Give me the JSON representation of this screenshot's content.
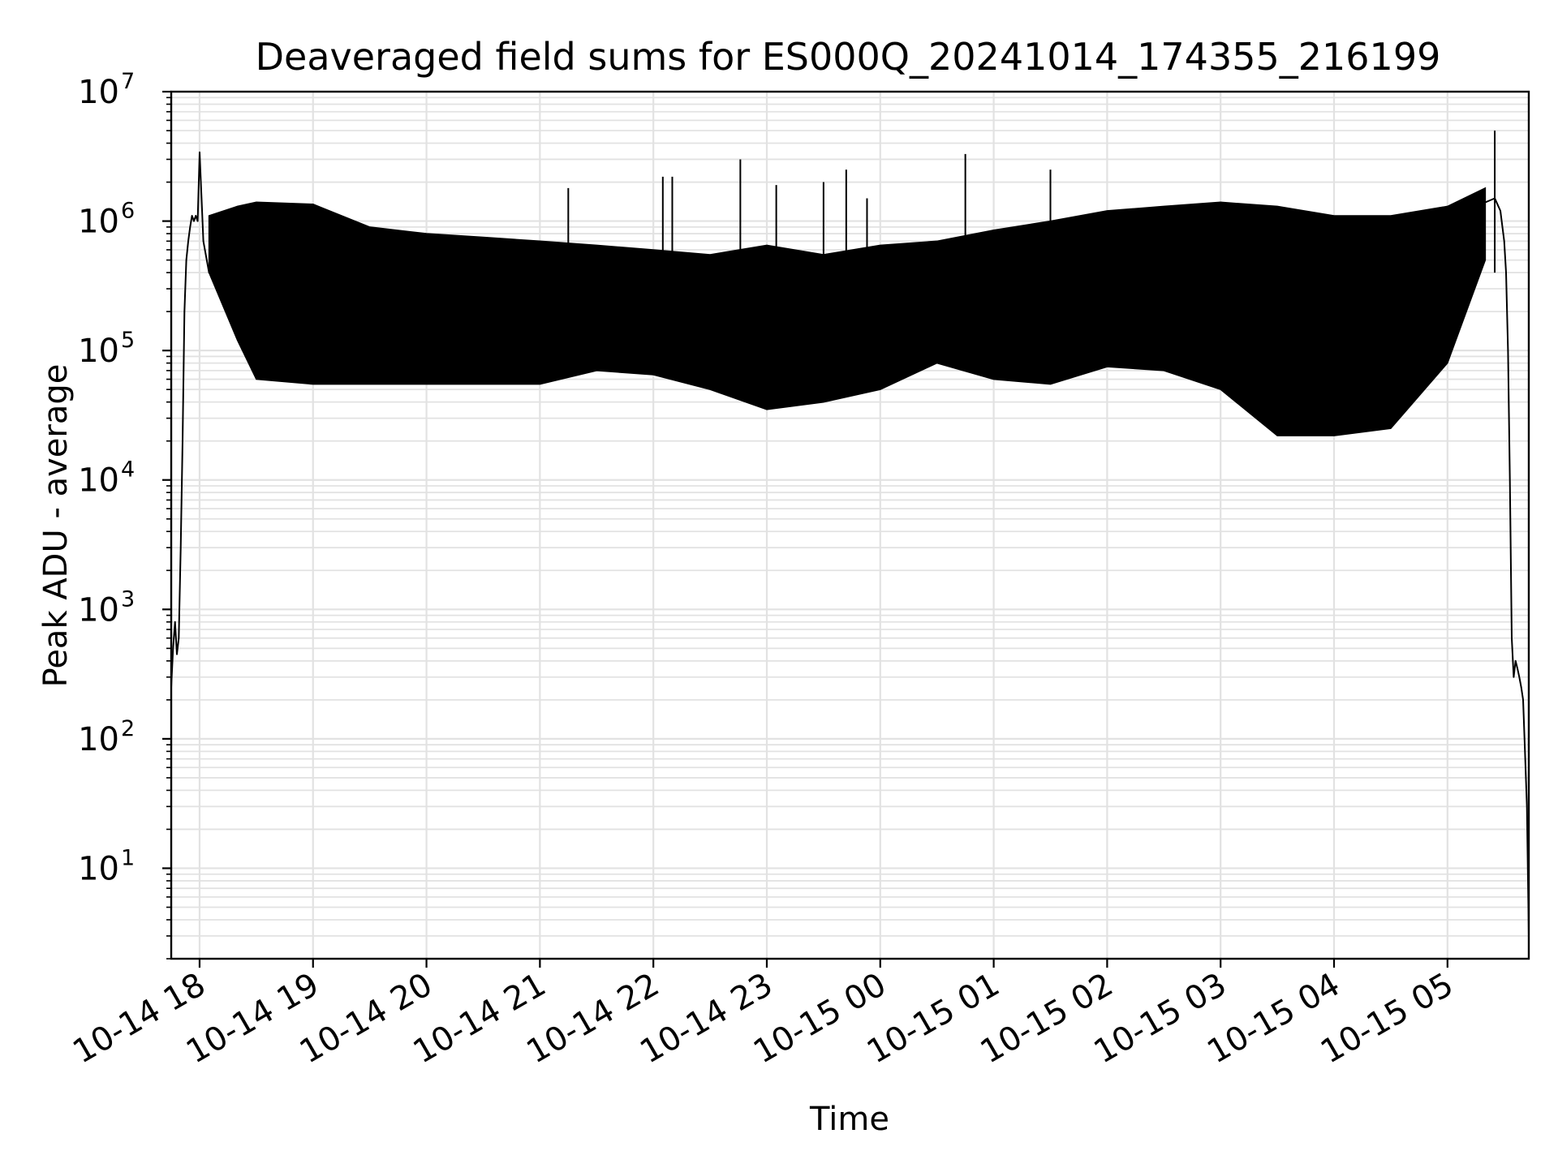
{
  "chart_data": {
    "type": "line",
    "title": "Deaveraged field sums for ES000Q_20241014_174355_216199",
    "xlabel": "Time",
    "ylabel": "Peak ADU - average",
    "yscale": "log",
    "ylim": [
      2,
      10000000
    ],
    "xlim": [
      "2024-10-14 17:45",
      "2024-10-15 05:43"
    ],
    "grid": "both",
    "line_color": "#000000",
    "x_ticks": [
      "10-14 18",
      "10-14 19",
      "10-14 20",
      "10-14 21",
      "10-14 22",
      "10-14 23",
      "10-15 00",
      "10-15 01",
      "10-15 02",
      "10-15 03",
      "10-15 04",
      "10-15 05"
    ],
    "x_tick_times": [
      "2024-10-14 18:00",
      "2024-10-14 19:00",
      "2024-10-14 20:00",
      "2024-10-14 21:00",
      "2024-10-14 22:00",
      "2024-10-14 23:00",
      "2024-10-15 00:00",
      "2024-10-15 01:00",
      "2024-10-15 02:00",
      "2024-10-15 03:00",
      "2024-10-15 04:00",
      "2024-10-15 05:00"
    ],
    "y_ticks": [
      {
        "value": 10,
        "base": "10",
        "exp": "1"
      },
      {
        "value": 100,
        "base": "10",
        "exp": "2"
      },
      {
        "value": 1000,
        "base": "10",
        "exp": "3"
      },
      {
        "value": 10000,
        "base": "10",
        "exp": "4"
      },
      {
        "value": 100000,
        "base": "10",
        "exp": "5"
      },
      {
        "value": 1000000,
        "base": "10",
        "exp": "6"
      },
      {
        "value": 10000000,
        "base": "10",
        "exp": "7"
      }
    ],
    "series": [
      {
        "x": [
          "2024-10-14 17:45",
          "2024-10-14 17:46",
          "2024-10-14 17:47",
          "2024-10-14 17:48",
          "2024-10-14 17:49",
          "2024-10-14 17:50",
          "2024-10-14 17:51",
          "2024-10-14 17:52",
          "2024-10-14 17:53",
          "2024-10-14 17:54",
          "2024-10-14 17:55",
          "2024-10-14 17:56",
          "2024-10-14 17:57",
          "2024-10-14 17:58",
          "2024-10-14 17:59",
          "2024-10-14 18:00",
          "2024-10-14 18:02",
          "2024-10-14 18:05",
          "2024-10-14 18:10",
          "2024-10-14 18:20",
          "2024-10-14 18:30",
          "2024-10-14 19:00",
          "2024-10-14 19:30",
          "2024-10-14 20:00",
          "2024-10-14 20:30",
          "2024-10-14 21:00",
          "2024-10-14 21:30",
          "2024-10-14 22:00",
          "2024-10-14 22:30",
          "2024-10-14 23:00",
          "2024-10-14 23:30",
          "2024-10-15 00:00",
          "2024-10-15 00:30",
          "2024-10-15 01:00",
          "2024-10-15 01:30",
          "2024-10-15 02:00",
          "2024-10-15 02:30",
          "2024-10-15 03:00",
          "2024-10-15 03:30",
          "2024-10-15 04:00",
          "2024-10-15 04:30",
          "2024-10-15 05:00",
          "2024-10-15 05:15",
          "2024-10-15 05:25",
          "2024-10-15 05:28",
          "2024-10-15 05:30",
          "2024-10-15 05:31",
          "2024-10-15 05:32",
          "2024-10-15 05:33",
          "2024-10-15 05:34",
          "2024-10-15 05:35",
          "2024-10-15 05:36",
          "2024-10-15 05:37",
          "2024-10-15 05:38",
          "2024-10-15 05:39",
          "2024-10-15 05:40",
          "2024-10-15 05:41",
          "2024-10-15 05:42",
          "2024-10-15 05:43"
        ],
        "y": [
          250,
          500,
          800,
          450,
          600,
          3000,
          20000,
          200000,
          500000,
          700000,
          900000,
          1100000,
          1000000,
          1100000,
          1000000,
          3400000,
          700000,
          400000,
          600000,
          300000,
          150000,
          120000,
          200000,
          150000,
          130000,
          200000,
          250000,
          300000,
          250000,
          220000,
          250000,
          300000,
          350000,
          400000,
          500000,
          500000,
          400000,
          250000,
          200000,
          300000,
          700000,
          1100000,
          1300000,
          1500000,
          1200000,
          700000,
          400000,
          100000,
          10000,
          600,
          300,
          400,
          350,
          300,
          250,
          200,
          80,
          30,
          3
        ]
      }
    ],
    "envelope": {
      "x": [
        "2024-10-14 18:05",
        "2024-10-14 18:20",
        "2024-10-14 18:30",
        "2024-10-14 19:00",
        "2024-10-14 19:30",
        "2024-10-14 20:00",
        "2024-10-14 20:30",
        "2024-10-14 21:00",
        "2024-10-14 21:30",
        "2024-10-14 22:00",
        "2024-10-14 22:30",
        "2024-10-14 23:00",
        "2024-10-14 23:30",
        "2024-10-15 00:00",
        "2024-10-15 00:30",
        "2024-10-15 01:00",
        "2024-10-15 01:30",
        "2024-10-15 02:00",
        "2024-10-15 02:30",
        "2024-10-15 03:00",
        "2024-10-15 03:30",
        "2024-10-15 04:00",
        "2024-10-15 04:30",
        "2024-10-15 05:00",
        "2024-10-15 05:20"
      ],
      "upper": [
        1100000,
        1300000,
        1400000,
        1350000,
        900000,
        800000,
        750000,
        700000,
        650000,
        600000,
        550000,
        650000,
        550000,
        650000,
        700000,
        850000,
        1000000,
        1200000,
        1300000,
        1400000,
        1300000,
        1100000,
        1100000,
        1300000,
        1800000
      ],
      "lower": [
        400000,
        120000,
        60000,
        55000,
        55000,
        55000,
        55000,
        55000,
        70000,
        65000,
        50000,
        35000,
        40000,
        50000,
        80000,
        60000,
        55000,
        75000,
        70000,
        50000,
        22000,
        22000,
        25000,
        80000,
        500000
      ]
    },
    "spikes": [
      {
        "x": "2024-10-14 21:15",
        "y": 1800000
      },
      {
        "x": "2024-10-14 22:05",
        "y": 2200000
      },
      {
        "x": "2024-10-14 22:10",
        "y": 2200000
      },
      {
        "x": "2024-10-14 22:46",
        "y": 3000000
      },
      {
        "x": "2024-10-14 23:05",
        "y": 1900000
      },
      {
        "x": "2024-10-14 23:30",
        "y": 2000000
      },
      {
        "x": "2024-10-14 23:42",
        "y": 2500000
      },
      {
        "x": "2024-10-14 23:53",
        "y": 1500000
      },
      {
        "x": "2024-10-15 00:45",
        "y": 3300000
      },
      {
        "x": "2024-10-15 01:30",
        "y": 2500000
      },
      {
        "x": "2024-10-15 05:25",
        "y": 5000000
      }
    ]
  }
}
